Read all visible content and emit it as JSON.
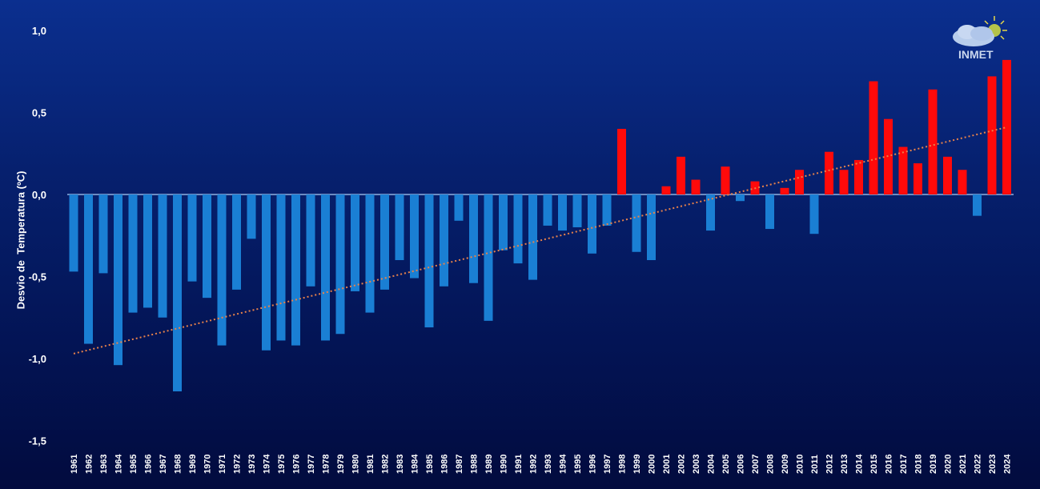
{
  "chart_data": {
    "type": "bar",
    "title": "",
    "xlabel": "",
    "ylabel": "Desvio de  Temperatura (ºC)",
    "ylim": [
      -1.5,
      1.0
    ],
    "yticks": [
      "1,0",
      "0,5",
      "0,0",
      "-0,5",
      "-1,0",
      "-1,5"
    ],
    "ytick_values": [
      1.0,
      0.5,
      0.0,
      -0.5,
      -1.0,
      -1.5
    ],
    "grid": false,
    "categories": [
      "1961",
      "1962",
      "1963",
      "1964",
      "1965",
      "1966",
      "1967",
      "1968",
      "1969",
      "1970",
      "1971",
      "1972",
      "1973",
      "1974",
      "1975",
      "1976",
      "1977",
      "1978",
      "1979",
      "1980",
      "1981",
      "1982",
      "1983",
      "1984",
      "1985",
      "1986",
      "1987",
      "1988",
      "1989",
      "1990",
      "1991",
      "1992",
      "1993",
      "1994",
      "1995",
      "1996",
      "1997",
      "1998",
      "1999",
      "2000",
      "2001",
      "2002",
      "2003",
      "2004",
      "2005",
      "2006",
      "2007",
      "2008",
      "2009",
      "2010",
      "2011",
      "2012",
      "2013",
      "2014",
      "2015",
      "2016",
      "2017",
      "2018",
      "2019",
      "2020",
      "2021",
      "2022",
      "2023",
      "2024"
    ],
    "values": [
      -0.47,
      -0.91,
      -0.48,
      -1.04,
      -0.72,
      -0.69,
      -0.75,
      -1.2,
      -0.53,
      -0.63,
      -0.92,
      -0.58,
      -0.27,
      -0.95,
      -0.89,
      -0.92,
      -0.56,
      -0.89,
      -0.85,
      -0.59,
      -0.72,
      -0.58,
      -0.4,
      -0.51,
      -0.81,
      -0.56,
      -0.16,
      -0.54,
      -0.77,
      -0.34,
      -0.42,
      -0.52,
      -0.19,
      -0.22,
      -0.2,
      -0.36,
      -0.19,
      0.4,
      -0.35,
      -0.4,
      0.05,
      0.23,
      0.09,
      -0.22,
      0.17,
      -0.04,
      0.08,
      -0.21,
      0.04,
      0.15,
      -0.24,
      0.26,
      0.15,
      0.21,
      0.69,
      0.46,
      0.29,
      0.19,
      0.64,
      0.23,
      0.15,
      -0.13,
      0.72,
      0.82
    ],
    "trendline": {
      "type": "linear",
      "style": "dotted",
      "start": [
        1961,
        -0.97
      ],
      "end": [
        2024,
        0.41
      ]
    },
    "colors": {
      "negative": "#1a7fd4",
      "positive": "#ff0a0a",
      "trend": "#e8824a",
      "zero_line": "#8fb0e0"
    }
  },
  "logo": {
    "text": "INMET"
  }
}
